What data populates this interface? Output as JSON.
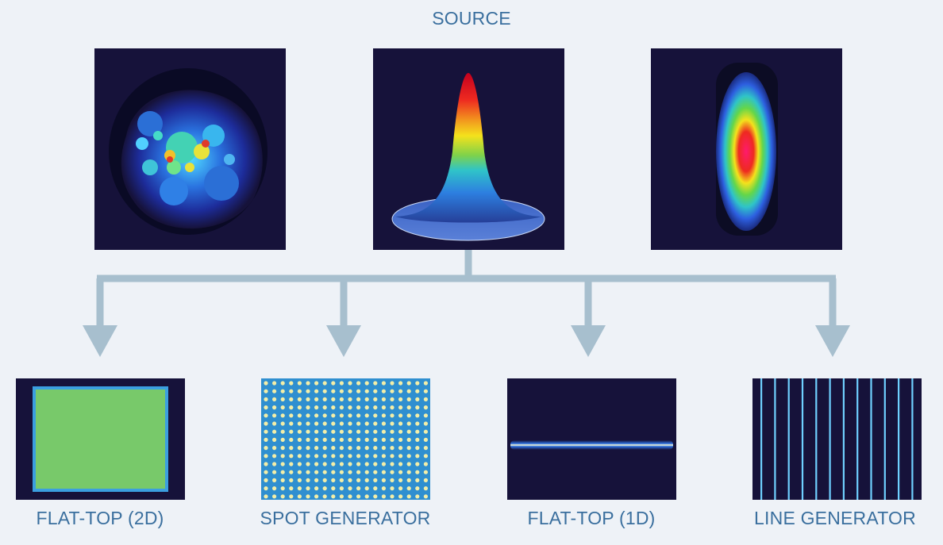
{
  "diagram": {
    "source_label": "SOURCE",
    "sources": [
      {
        "name": "speckled beam profile"
      },
      {
        "name": "gaussian beam profile"
      },
      {
        "name": "elliptical beam profile"
      }
    ],
    "outputs": [
      {
        "label": "FLAT-TOP (2D)"
      },
      {
        "label": "SPOT GENERATOR"
      },
      {
        "label": "FLAT-TOP (1D)"
      },
      {
        "label": "LINE GENERATOR"
      }
    ],
    "colors": {
      "background": "#eef2f7",
      "text": "#3a6f9e",
      "connector": "#a7bfce",
      "image_bg": "#16123a"
    }
  }
}
